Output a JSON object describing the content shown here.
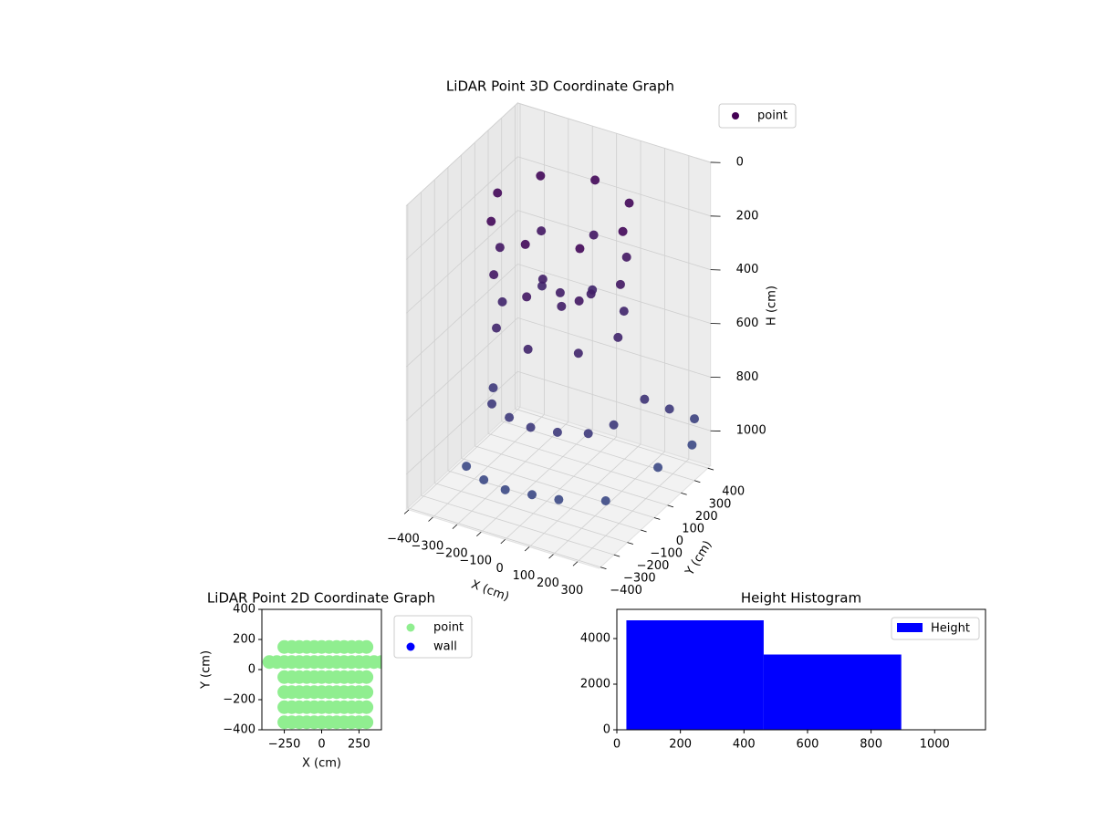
{
  "chart_data": [
    {
      "type": "scatter3d",
      "title": "LiDAR Point 3D Coordinate Graph",
      "xlabel": "X (cm)",
      "ylabel": "Y (cm)",
      "zlabel": "H (cm)",
      "xlim": [
        -410,
        390
      ],
      "ylim": [
        -410,
        420
      ],
      "zlim": [
        1130,
        0
      ],
      "xticks": [
        {
          "value": -400,
          "label": "−400"
        },
        {
          "value": -300,
          "label": "−300"
        },
        {
          "value": -200,
          "label": "−200"
        },
        {
          "value": -100,
          "label": "−100"
        },
        0,
        100,
        200,
        300
      ],
      "yticks": [
        {
          "value": -400,
          "label": "−400"
        },
        {
          "value": -300,
          "label": "−300"
        },
        {
          "value": -200,
          "label": "−200"
        },
        {
          "value": -100,
          "label": "−100"
        },
        0,
        100,
        200,
        300,
        400
      ],
      "zticks": [
        0,
        200,
        400,
        600,
        800,
        1000
      ],
      "cmap": [
        "#440154",
        "#3b528b"
      ],
      "legend": "upper right",
      "series": [
        {
          "name": "point",
          "x": [
            260,
            184,
            0,
            -184,
            -260,
            -184,
            0,
            184,
            250,
            177,
            0,
            -177,
            -250,
            -177,
            0,
            177,
            240,
            170,
            0,
            -170,
            -240,
            -170,
            0,
            170,
            -200,
            -100,
            0,
            100,
            200,
            -250,
            250,
            -150,
            -50,
            50,
            150,
            -250,
            300,
            350,
            380,
            350,
            370,
            390,
            0,
            100,
            -100,
            50
          ],
          "y": [
            0,
            184,
            260,
            184,
            0,
            -184,
            -260,
            -184,
            0,
            177,
            250,
            177,
            0,
            -177,
            -250,
            -177,
            0,
            170,
            240,
            170,
            0,
            -170,
            -240,
            -170,
            -150,
            -200,
            -220,
            -200,
            -150,
            -50,
            -50,
            -300,
            -320,
            -300,
            -280,
            -250,
            -200,
            100,
            300,
            0,
            150,
            300,
            0,
            50,
            50,
            -80
          ],
          "h": [
            100,
            100,
            100,
            100,
            100,
            100,
            100,
            100,
            300,
            300,
            300,
            300,
            300,
            300,
            300,
            300,
            500,
            500,
            500,
            500,
            500,
            500,
            500,
            500,
            800,
            800,
            800,
            800,
            800,
            800,
            800,
            1000,
            1000,
            1000,
            1000,
            1000,
            1000,
            1000,
            1000,
            700,
            800,
            900,
            400,
            400,
            400,
            400
          ]
        }
      ]
    },
    {
      "type": "scatter",
      "title": "LiDAR Point 2D Coordinate Graph",
      "xlabel": "X (cm)",
      "ylabel": "Y (cm)",
      "xlim": [
        -400,
        400
      ],
      "ylim": [
        -400,
        400
      ],
      "xticks": [
        {
          "value": -250,
          "label": "−250"
        },
        0,
        250
      ],
      "yticks": [
        {
          "value": -400,
          "label": "−400"
        },
        {
          "value": -200,
          "label": "−200"
        },
        0,
        200,
        400
      ],
      "legend": "outside right",
      "series": [
        {
          "name": "point",
          "color": "#90ee90",
          "x": [
            -350,
            -300,
            -250,
            -200,
            -150,
            -100,
            -50,
            0,
            50,
            100,
            150,
            200,
            250,
            300,
            350,
            400,
            -250,
            -200,
            -150,
            -100,
            -50,
            0,
            50,
            100,
            150,
            200,
            250,
            300,
            -250,
            -200,
            -150,
            -100,
            -50,
            0,
            50,
            100,
            150,
            200,
            250,
            300,
            -250,
            -200,
            -150,
            -100,
            -50,
            0,
            50,
            100,
            150,
            200,
            250,
            300,
            -250,
            -200,
            -150,
            -100,
            -50,
            0,
            50,
            100,
            150,
            200,
            250,
            300,
            -250,
            -200,
            -150,
            -100,
            -50,
            0,
            50,
            100,
            150,
            200,
            250,
            300
          ],
          "y": [
            50,
            50,
            50,
            50,
            50,
            50,
            50,
            50,
            50,
            50,
            50,
            50,
            50,
            50,
            50,
            50,
            150,
            150,
            150,
            150,
            150,
            150,
            150,
            150,
            150,
            150,
            150,
            150,
            -50,
            -50,
            -50,
            -50,
            -50,
            -50,
            -50,
            -50,
            -50,
            -50,
            -50,
            -50,
            -150,
            -150,
            -150,
            -150,
            -150,
            -150,
            -150,
            -150,
            -150,
            -150,
            -150,
            -150,
            -250,
            -250,
            -250,
            -250,
            -250,
            -250,
            -250,
            -250,
            -250,
            -250,
            -250,
            -250,
            -350,
            -350,
            -350,
            -350,
            -350,
            -350,
            -350,
            -350,
            -350,
            -350,
            -350,
            -350
          ]
        },
        {
          "name": "wall",
          "color": "#0000ff",
          "x": [],
          "y": []
        }
      ]
    },
    {
      "type": "histogram",
      "title": "Height Histogram",
      "xlim": [
        0,
        1160
      ],
      "ylim": [
        0,
        5280
      ],
      "xticks": [
        0,
        200,
        400,
        600,
        800,
        1000
      ],
      "yticks": [
        0,
        2000,
        4000
      ],
      "legend": "upper right",
      "series": [
        {
          "name": "Height",
          "color": "#0000ff",
          "bins": [
            30,
            462,
            895,
            1128
          ],
          "values": [
            4800,
            3300,
            10
          ]
        }
      ]
    }
  ]
}
